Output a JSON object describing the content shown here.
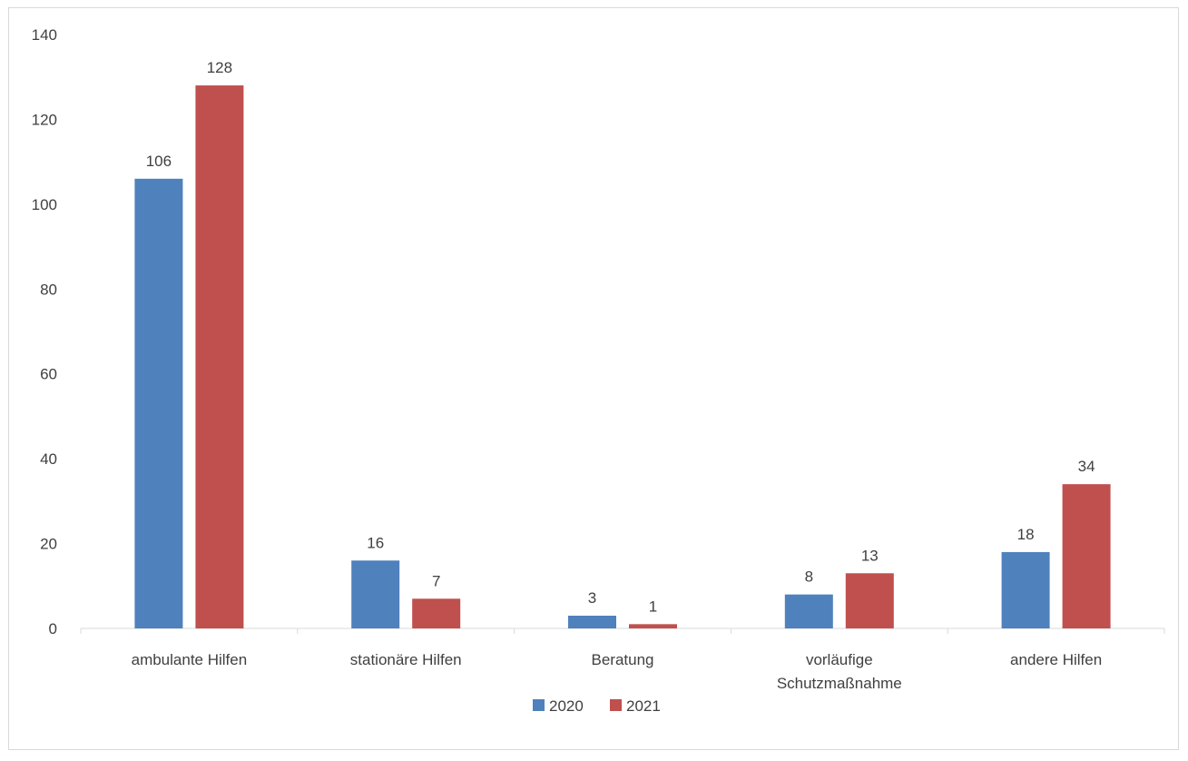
{
  "chart_data": {
    "type": "bar",
    "categories": [
      "ambulante Hilfen",
      "stationäre Hilfen",
      "Beratung",
      "vorläufige Schutzmaßnahme",
      "andere Hilfen"
    ],
    "category_lines": [
      [
        "ambulante Hilfen"
      ],
      [
        "stationäre Hilfen"
      ],
      [
        "Beratung"
      ],
      [
        "vorläufige",
        "Schutzmaßnahme"
      ],
      [
        "andere Hilfen"
      ]
    ],
    "series": [
      {
        "name": "2020",
        "color": "#4f81bd",
        "values": [
          106,
          16,
          3,
          8,
          18
        ]
      },
      {
        "name": "2021",
        "color": "#c0504d",
        "values": [
          128,
          7,
          1,
          13,
          34
        ]
      }
    ],
    "yticks": [
      "0",
      "20",
      "40",
      "60",
      "80",
      "100",
      "120",
      "140"
    ],
    "ylim": [
      0,
      140
    ],
    "grid": false,
    "legend_position": "bottom",
    "title": "",
    "xlabel": "",
    "ylabel": ""
  }
}
